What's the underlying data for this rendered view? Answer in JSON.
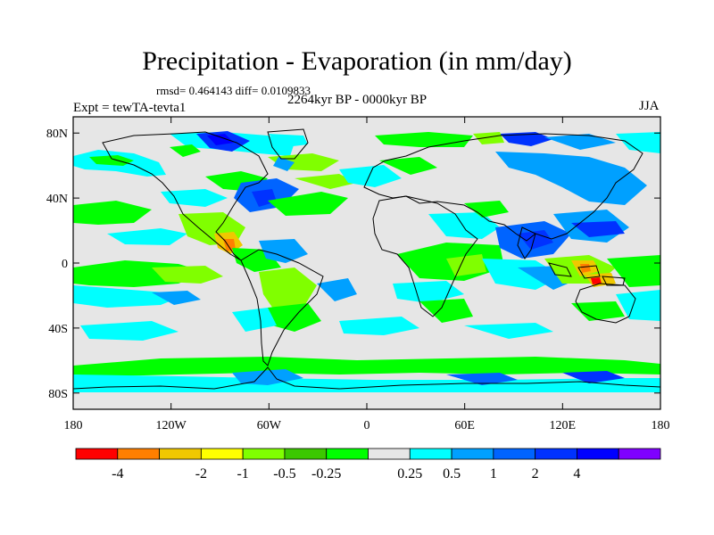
{
  "title": "Precipitation - Evaporation (in mm/day)",
  "stats_line": "rmsd= 0.464143 diff= 0.0109833",
  "period": "2264kyr BP - 0000kyr BP",
  "experiment_label": "Expt = tewTA-tevta1",
  "season": "JJA",
  "map": {
    "projection": "cylindrical-equidistant",
    "lon_range": [
      -180,
      180
    ],
    "lat_range": [
      -90,
      90
    ],
    "background_color": "#e6e6e6",
    "lat_ticks": [
      {
        "lat": 80,
        "label": "80N"
      },
      {
        "lat": 40,
        "label": "40N"
      },
      {
        "lat": 0,
        "label": "0"
      },
      {
        "lat": -40,
        "label": "40S"
      },
      {
        "lat": -80,
        "label": "80S"
      }
    ],
    "lon_ticks": [
      {
        "lon": -180,
        "label": "180"
      },
      {
        "lon": -120,
        "label": "120W"
      },
      {
        "lon": -60,
        "label": "60W"
      },
      {
        "lon": 0,
        "label": "0"
      },
      {
        "lon": 60,
        "label": "60E"
      },
      {
        "lon": 120,
        "label": "120E"
      },
      {
        "lon": 180,
        "label": "180"
      }
    ]
  },
  "colorbar": {
    "colors": [
      "#ff0000",
      "#ff7f00",
      "#f0c800",
      "#ffff00",
      "#80ff00",
      "#3cc800",
      "#00ff00",
      "#e6e6e6",
      "#00ffff",
      "#00a0ff",
      "#0064ff",
      "#0032ff",
      "#0000ff",
      "#7f00ff"
    ],
    "labels": [
      "-4",
      "-2",
      "-1",
      "-0.5",
      "-0.25",
      "0.25",
      "0.5",
      "1",
      "2",
      "4"
    ],
    "label_boundaries": [
      1,
      3,
      4,
      5,
      6,
      8,
      9,
      10,
      11,
      12
    ]
  }
}
